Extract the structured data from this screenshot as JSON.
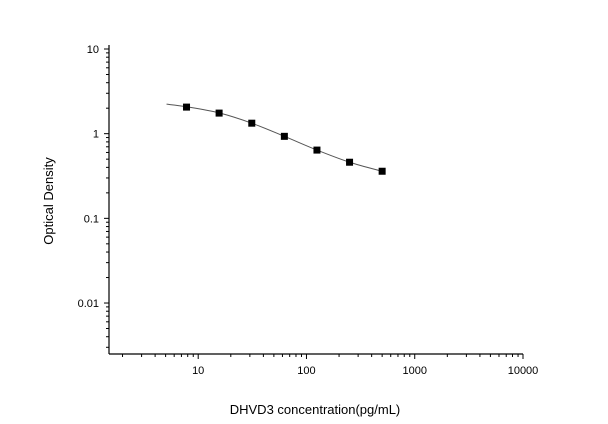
{
  "chart_data": {
    "type": "line",
    "title": "",
    "xlabel": "DHVD3 concentration(pg/mL)",
    "ylabel": "Optical Density",
    "x_scale": "log",
    "y_scale": "log",
    "xlim": [
      1.5,
      10000
    ],
    "ylim": [
      0.0025,
      10
    ],
    "x_ticks": [
      10,
      100,
      1000,
      10000
    ],
    "x_tick_labels": [
      "10",
      "100",
      "1000",
      "10000"
    ],
    "y_ticks": [
      10,
      1,
      0.1,
      0.01
    ],
    "y_tick_labels": [
      "10",
      "1",
      "0.1",
      "0.01"
    ],
    "grid": false,
    "legend": "none",
    "series": [
      {
        "marker": "square",
        "x": [
          7.8,
          15.6,
          31.25,
          62.5,
          125,
          250,
          500
        ],
        "y": [
          2.06,
          1.75,
          1.33,
          0.93,
          0.64,
          0.46,
          0.36
        ]
      }
    ],
    "fit_curve": {
      "x": [
        5.1,
        7.8,
        15.6,
        31.25,
        62.5,
        125,
        250,
        500
      ],
      "y": [
        2.23,
        2.08,
        1.76,
        1.33,
        0.93,
        0.64,
        0.46,
        0.36
      ]
    },
    "colors": {
      "marker": "#000000",
      "curve": "#555555",
      "axis": "#000000"
    }
  }
}
